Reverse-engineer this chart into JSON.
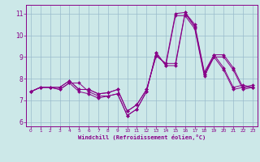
{
  "xlabel": "Windchill (Refroidissement éolien,°C)",
  "xlim": [
    -0.5,
    23.5
  ],
  "ylim": [
    5.8,
    11.4
  ],
  "yticks": [
    6,
    7,
    8,
    9,
    10,
    11
  ],
  "xticks": [
    0,
    1,
    2,
    3,
    4,
    5,
    6,
    7,
    8,
    9,
    10,
    11,
    12,
    13,
    14,
    15,
    16,
    17,
    18,
    19,
    20,
    21,
    22,
    23
  ],
  "bg_color": "#cce8e8",
  "grid_color": "#99bbcc",
  "line_color": "#880088",
  "series": [
    [
      7.4,
      7.6,
      7.6,
      7.5,
      7.8,
      7.8,
      7.4,
      7.2,
      7.2,
      7.3,
      6.3,
      6.6,
      7.4,
      9.2,
      8.6,
      8.6,
      11.0,
      10.4,
      8.2,
      9.0,
      9.0,
      8.4,
      7.5,
      7.6
    ],
    [
      7.4,
      7.6,
      7.6,
      7.5,
      7.8,
      7.4,
      7.3,
      7.1,
      7.2,
      7.3,
      6.3,
      6.6,
      7.4,
      9.2,
      8.6,
      10.9,
      10.9,
      10.3,
      8.1,
      9.0,
      8.4,
      7.5,
      7.6,
      7.6
    ],
    [
      7.4,
      7.6,
      7.6,
      7.6,
      7.9,
      7.5,
      7.5,
      7.3,
      7.35,
      7.5,
      6.5,
      6.8,
      7.5,
      9.05,
      8.7,
      8.7,
      11.05,
      10.5,
      8.3,
      9.1,
      9.1,
      8.5,
      7.6,
      7.7
    ],
    [
      7.4,
      7.6,
      7.6,
      7.6,
      7.9,
      7.5,
      7.5,
      7.3,
      7.35,
      7.5,
      6.5,
      6.8,
      7.5,
      9.05,
      8.7,
      11.0,
      11.05,
      10.4,
      8.2,
      9.1,
      8.5,
      7.6,
      7.7,
      7.6
    ]
  ]
}
